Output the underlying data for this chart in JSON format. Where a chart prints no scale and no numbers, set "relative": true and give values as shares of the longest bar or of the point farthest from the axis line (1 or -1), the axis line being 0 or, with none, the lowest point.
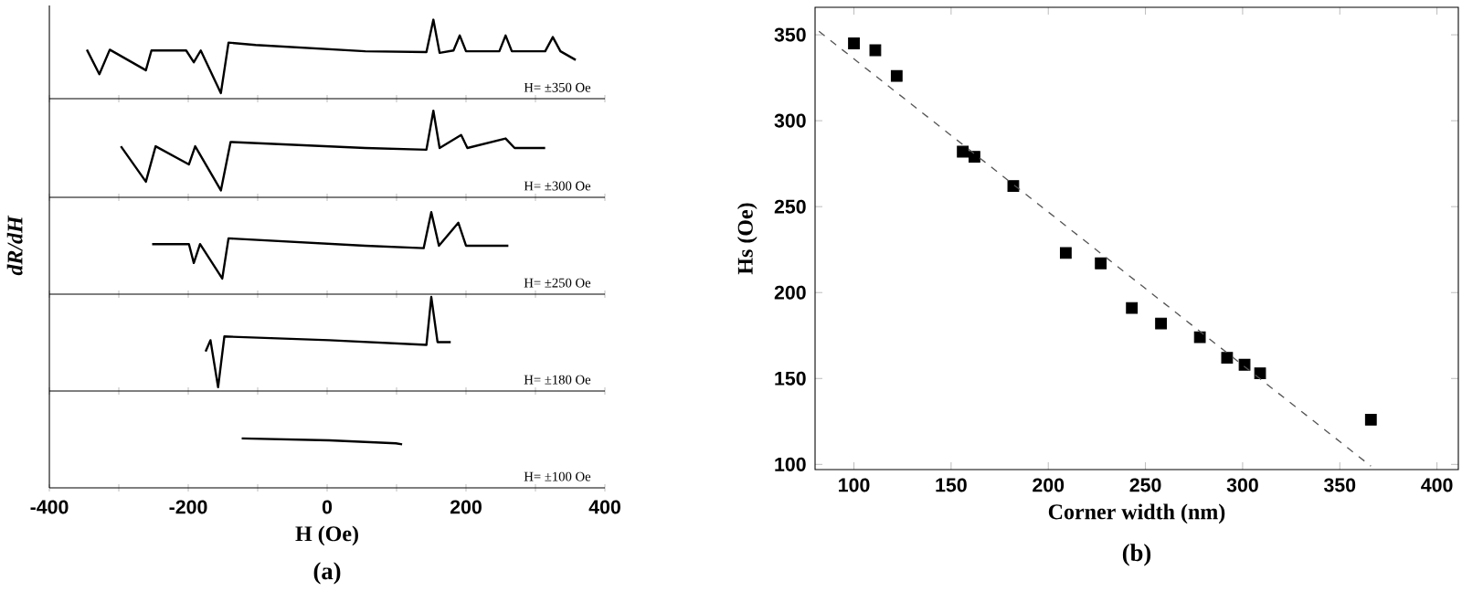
{
  "chart_data": [
    {
      "type": "line",
      "relative": true,
      "xlim": [
        -400,
        400
      ],
      "xticks": [
        -400,
        {
          "value": -300,
          "label": null
        },
        -200,
        {
          "value": -100,
          "label": null
        },
        0,
        {
          "value": 100,
          "label": null
        },
        200,
        {
          "value": 300,
          "label": null
        },
        400
      ],
      "tick_labels": false,
      "annotations": [
        "H= ±350 Oe"
      ],
      "series": [
        {
          "color": "#000000",
          "x": [
            -346,
            -328,
            -313,
            -261,
            -253,
            -203,
            -192,
            -182,
            -153,
            -142,
            -103,
            55,
            143,
            153,
            162,
            182,
            191,
            200,
            248,
            257,
            266,
            314,
            325,
            336,
            358
          ],
          "values": [
            0.62,
            0.31,
            0.62,
            0.36,
            0.61,
            0.61,
            0.46,
            0.61,
            0.07,
            0.71,
            0.68,
            0.6,
            0.59,
            1,
            0.58,
            0.61,
            0.8,
            0.6,
            0.6,
            0.8,
            0.6,
            0.6,
            0.78,
            0.6,
            0.49
          ]
        }
      ]
    },
    {
      "type": "line",
      "relative": true,
      "xlim": [
        -400,
        400
      ],
      "xticks": [
        -400,
        {
          "value": -300,
          "label": null
        },
        -200,
        {
          "value": -100,
          "label": null
        },
        0,
        {
          "value": 100,
          "label": null
        },
        200,
        {
          "value": 300,
          "label": null
        },
        400
      ],
      "tick_labels": false,
      "annotations": [
        "H= ±300 Oe"
      ],
      "series": [
        {
          "color": "#000000",
          "x": [
            -297,
            -261,
            -247,
            -199,
            -190,
            -153,
            -139,
            55,
            143,
            153,
            162,
            193,
            202,
            257,
            270,
            314
          ],
          "values": [
            0.59,
            0.18,
            0.59,
            0.38,
            0.59,
            0.08,
            0.64,
            0.57,
            0.55,
            1,
            0.57,
            0.72,
            0.57,
            0.68,
            0.57,
            0.57
          ]
        }
      ]
    },
    {
      "type": "line",
      "relative": true,
      "xlim": [
        -400,
        400
      ],
      "xticks": [
        -400,
        {
          "value": -300,
          "label": null
        },
        -200,
        {
          "value": -100,
          "label": null
        },
        0,
        {
          "value": 100,
          "label": null
        },
        200,
        {
          "value": 300,
          "label": null
        },
        400
      ],
      "tick_labels": false,
      "ylabel": "dR/dH",
      "annotations": [
        "H= ±250 Oe"
      ],
      "series": [
        {
          "color": "#000000",
          "x": [
            -252,
            -199,
            -192,
            -183,
            -151,
            -142,
            55,
            139,
            150,
            161,
            189,
            200,
            261
          ],
          "values": [
            0.61,
            0.61,
            0.38,
            0.61,
            0.19,
            0.68,
            0.59,
            0.56,
            1,
            0.59,
            0.87,
            0.59,
            0.59
          ]
        }
      ]
    },
    {
      "type": "line",
      "relative": true,
      "xlim": [
        -400,
        400
      ],
      "xticks": [
        -400,
        {
          "value": -300,
          "label": null
        },
        -200,
        {
          "value": -100,
          "label": null
        },
        0,
        {
          "value": 100,
          "label": null
        },
        200,
        {
          "value": 300,
          "label": null
        },
        400
      ],
      "tick_labels": false,
      "annotations": [
        "H= ±180 Oe"
      ],
      "series": [
        {
          "color": "#000000",
          "x": [
            -175,
            -168,
            -157,
            -148,
            3,
            143,
            150,
            159,
            178
          ],
          "values": [
            0.42,
            0.54,
            0.04,
            0.58,
            0.54,
            0.49,
            1,
            0.52,
            0.52
          ]
        }
      ]
    },
    {
      "type": "line",
      "relative": true,
      "xlim": [
        -400,
        400
      ],
      "xticks": [
        -400,
        {
          "value": -300,
          "label": null
        },
        -200,
        {
          "value": -100,
          "label": null
        },
        0,
        {
          "value": 100,
          "label": null
        },
        200,
        {
          "value": 300,
          "label": null
        },
        400
      ],
      "tick_labels": "x",
      "xlabel": "H (Oe)",
      "annotations": [
        "H= ±100 Oe",
        "(a)"
      ],
      "series": [
        {
          "color": "#000000",
          "x": [
            -123,
            3,
            99,
            108
          ],
          "values": [
            1,
            0.96,
            0.9,
            0.88
          ]
        }
      ]
    },
    {
      "type": "scatter",
      "xlim": [
        80,
        411
      ],
      "ylim": [
        97,
        366
      ],
      "xticks": [
        100,
        150,
        200,
        250,
        300,
        350,
        400
      ],
      "yticks": [
        100,
        150,
        200,
        250,
        300,
        350
      ],
      "xlabel": "Corner width (nm)",
      "ylabel": "Hs (Oe)",
      "annotations": [
        "(b)"
      ],
      "series": [
        {
          "color": "#000000",
          "marker": "square",
          "x": [
            100,
            111,
            122,
            156,
            162,
            182,
            209,
            227,
            243,
            258,
            278,
            292,
            301,
            309,
            366
          ],
          "values": [
            345,
            341,
            326,
            282,
            279,
            262,
            223,
            217,
            191,
            182,
            174,
            162,
            158,
            153,
            126
          ]
        },
        {
          "type": "line",
          "line_style": "dashed",
          "color": "#555555",
          "x": [
            82,
            366
          ],
          "values": [
            352,
            99
          ]
        }
      ]
    }
  ]
}
